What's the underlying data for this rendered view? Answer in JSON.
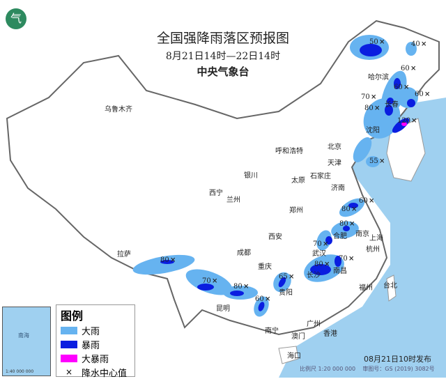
{
  "title": "全国强降雨落区预报图",
  "period": "8月21日14时—22日14时",
  "issuer": "中央气象台",
  "publish_time": "08月21日10时发布",
  "scale": "比例尺 1:20 000 000",
  "map_number": "审图号：GS (2019) 3082号",
  "inset": {
    "label": "南海",
    "scale": "1:40 000 000"
  },
  "legend": {
    "title": "图例",
    "items": [
      {
        "label": "大雨",
        "color": "#66b3f0"
      },
      {
        "label": "暴雨",
        "color": "#0a1ee0"
      },
      {
        "label": "大暴雨",
        "color": "#ff00ff"
      },
      {
        "label": "降水中心值",
        "icon": "x-mark-icon"
      }
    ]
  },
  "cities": [
    "乌鲁木齐",
    "拉萨",
    "西宁",
    "兰州",
    "银川",
    "呼和浩特",
    "北京",
    "天津",
    "石家庄",
    "太原",
    "济南",
    "郑州",
    "西安",
    "成都",
    "重庆",
    "贵阳",
    "昆明",
    "南宁",
    "广州",
    "香港",
    "澳门",
    "海口",
    "长沙",
    "南昌",
    "武汉",
    "合肥",
    "南京",
    "上海",
    "杭州",
    "福州",
    "台北",
    "沈阳",
    "长春",
    "哈尔滨"
  ],
  "rain_centers": [
    "50",
    "40",
    "60",
    "60",
    "70",
    "80",
    "60",
    "120",
    "55",
    "60",
    "80",
    "80",
    "70",
    "70",
    "80",
    "80",
    "70",
    "80",
    "65",
    "60"
  ],
  "colors": {
    "sea": "#9fd0f0",
    "land": "#ffffff",
    "border": "#666666",
    "river": "#5bc0e0"
  }
}
